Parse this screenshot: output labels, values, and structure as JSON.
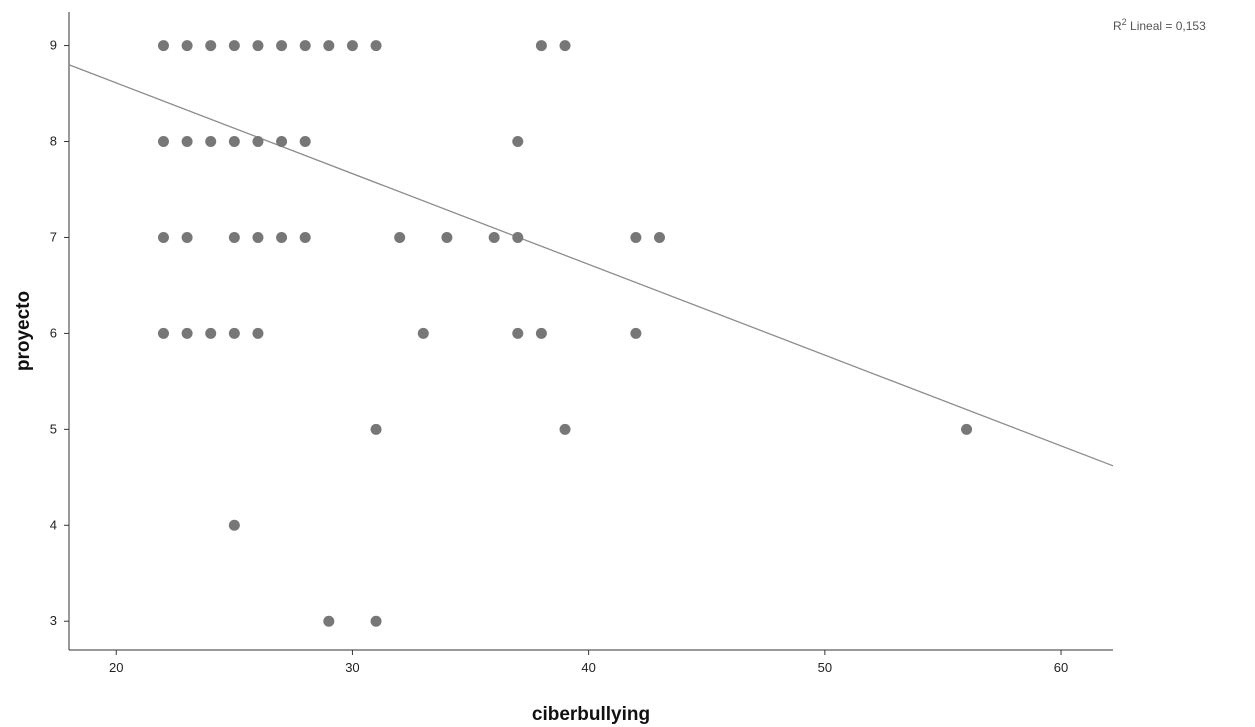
{
  "chart_data": {
    "type": "scatter",
    "title": "",
    "xlabel": "ciberbullying",
    "ylabel": "proyecto",
    "xlim": [
      18,
      62.2
    ],
    "ylim": [
      2.7,
      9.35
    ],
    "x_ticks": [
      20,
      30,
      40,
      50,
      60
    ],
    "y_ticks": [
      3,
      4,
      5,
      6,
      7,
      8,
      9
    ],
    "fit_line": {
      "label_prefix": "R",
      "label_sup": "2",
      "label_text": " Lineal = 0,153",
      "y_at_xmin": 8.8,
      "y_at_xmax": 4.62
    },
    "points": [
      [
        22,
        9
      ],
      [
        23,
        9
      ],
      [
        24,
        9
      ],
      [
        25,
        9
      ],
      [
        26,
        9
      ],
      [
        27,
        9
      ],
      [
        28,
        9
      ],
      [
        29,
        9
      ],
      [
        30,
        9
      ],
      [
        31,
        9
      ],
      [
        38,
        9
      ],
      [
        39,
        9
      ],
      [
        22,
        8
      ],
      [
        23,
        8
      ],
      [
        24,
        8
      ],
      [
        25,
        8
      ],
      [
        26,
        8
      ],
      [
        27,
        8
      ],
      [
        28,
        8
      ],
      [
        37,
        8
      ],
      [
        22,
        7
      ],
      [
        23,
        7
      ],
      [
        25,
        7
      ],
      [
        26,
        7
      ],
      [
        27,
        7
      ],
      [
        28,
        7
      ],
      [
        32,
        7
      ],
      [
        34,
        7
      ],
      [
        36,
        7
      ],
      [
        37,
        7
      ],
      [
        42,
        7
      ],
      [
        43,
        7
      ],
      [
        22,
        6
      ],
      [
        23,
        6
      ],
      [
        24,
        6
      ],
      [
        25,
        6
      ],
      [
        26,
        6
      ],
      [
        33,
        6
      ],
      [
        37,
        6
      ],
      [
        38,
        6
      ],
      [
        42,
        6
      ],
      [
        31,
        5
      ],
      [
        39,
        5
      ],
      [
        56,
        5
      ],
      [
        25,
        4
      ],
      [
        29,
        3
      ],
      [
        31,
        3
      ]
    ],
    "grid": false,
    "marker_color": "#777777",
    "line_color": "#8c8c8c"
  }
}
